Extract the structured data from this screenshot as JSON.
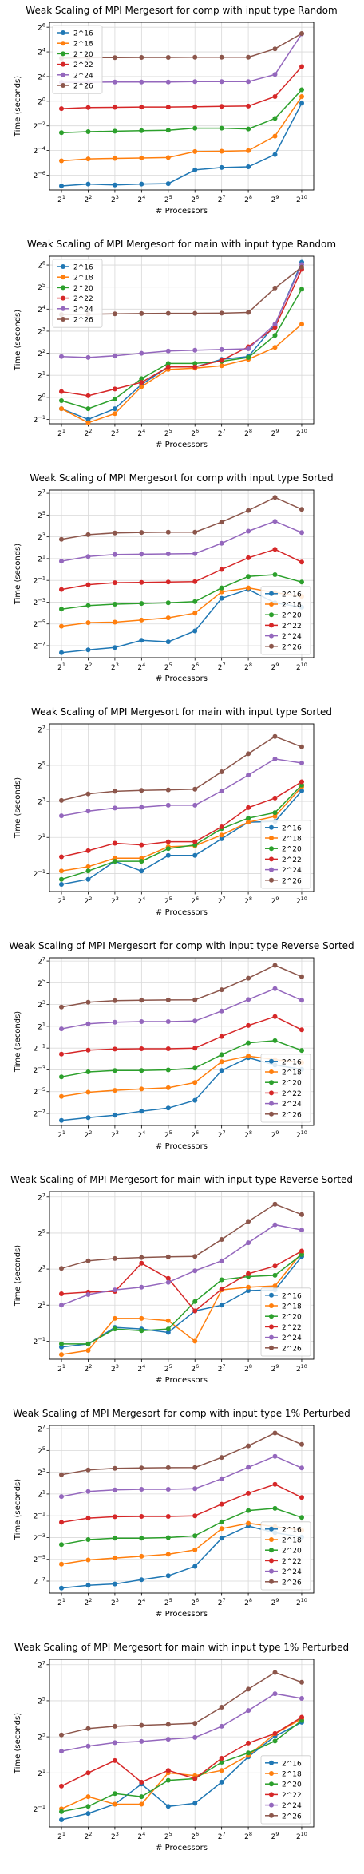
{
  "colors": {
    "2^16": "#1f77b4",
    "2^18": "#ff7f0e",
    "2^20": "#2ca02c",
    "2^22": "#d62728",
    "2^24": "#9467bd",
    "2^26": "#8c564b"
  },
  "chart_data": [
    {
      "type": "line",
      "title": "Weak Scaling of MPI Mergesort for comp with input type Random",
      "xlabel": "# Processors",
      "ylabel": "Time (seconds)",
      "x_scale": "log2",
      "y_scale": "log2",
      "x": [
        2,
        4,
        8,
        16,
        32,
        64,
        128,
        256,
        512,
        1024
      ],
      "x_tick_labels": [
        "2^1",
        "2^2",
        "2^3",
        "2^4",
        "2^5",
        "2^6",
        "2^7",
        "2^8",
        "2^9",
        "2^10"
      ],
      "y_ticks": [
        -6,
        -4,
        -2,
        0,
        2,
        4,
        6
      ],
      "ylim": [
        -7.2,
        6.4
      ],
      "legend_position": "upper-left",
      "grid": true,
      "series": [
        {
          "name": "2^16",
          "values": [
            0.0085,
            0.0095,
            0.009,
            0.0095,
            0.0097,
            0.021,
            0.024,
            0.025,
            0.05,
            0.9
          ]
        },
        {
          "name": "2^18",
          "values": [
            0.035,
            0.039,
            0.04,
            0.041,
            0.042,
            0.059,
            0.06,
            0.062,
            0.14,
            1.3
          ]
        },
        {
          "name": "2^20",
          "values": [
            0.17,
            0.18,
            0.185,
            0.19,
            0.195,
            0.22,
            0.22,
            0.21,
            0.38,
            1.9
          ]
        },
        {
          "name": "2^22",
          "values": [
            0.66,
            0.7,
            0.71,
            0.72,
            0.72,
            0.73,
            0.75,
            0.76,
            1.3,
            7.0
          ]
        },
        {
          "name": "2^24",
          "values": [
            2.9,
            2.9,
            2.95,
            2.95,
            2.95,
            3.0,
            3.0,
            3.0,
            4.5,
            44
          ]
        },
        {
          "name": "2^26",
          "values": [
            11.2,
            11.5,
            11.6,
            11.7,
            11.7,
            11.8,
            11.8,
            11.9,
            19,
            45
          ]
        }
      ]
    },
    {
      "type": "line",
      "title": "Weak Scaling of MPI Mergesort for main with input type Random",
      "xlabel": "# Processors",
      "ylabel": "Time (seconds)",
      "x_scale": "log2",
      "y_scale": "log2",
      "x": [
        2,
        4,
        8,
        16,
        32,
        64,
        128,
        256,
        512,
        1024
      ],
      "x_tick_labels": [
        "2^1",
        "2^2",
        "2^3",
        "2^4",
        "2^5",
        "2^6",
        "2^7",
        "2^8",
        "2^9",
        "2^10"
      ],
      "y_ticks": [
        -1,
        0,
        1,
        2,
        3,
        4,
        5,
        6
      ],
      "ylim": [
        -1.2,
        6.4
      ],
      "legend_position": "upper-left",
      "grid": true,
      "series": [
        {
          "name": "2^16",
          "values": [
            0.7,
            0.5,
            0.7,
            1.5,
            2.6,
            2.6,
            3.3,
            3.6,
            9.8,
            70
          ]
        },
        {
          "name": "2^18",
          "values": [
            0.7,
            0.45,
            0.6,
            1.4,
            2.4,
            2.5,
            2.7,
            3.3,
            4.8,
            10
          ]
        },
        {
          "name": "2^20",
          "values": [
            0.9,
            0.7,
            0.95,
            1.8,
            2.9,
            2.9,
            3.1,
            3.5,
            7.0,
            30
          ]
        },
        {
          "name": "2^22",
          "values": [
            1.2,
            1.05,
            1.3,
            1.6,
            2.6,
            2.6,
            3.2,
            4.9,
            9.0,
            56
          ]
        },
        {
          "name": "2^24",
          "values": [
            3.6,
            3.5,
            3.7,
            4.0,
            4.3,
            4.4,
            4.5,
            4.6,
            10,
            65
          ]
        },
        {
          "name": "2^26",
          "values": [
            13.5,
            13.6,
            13.8,
            13.9,
            14,
            14,
            14.1,
            14.4,
            31,
            60
          ]
        }
      ]
    },
    {
      "type": "line",
      "title": "Weak Scaling of MPI Mergesort for comp with input type Sorted",
      "xlabel": "# Processors",
      "ylabel": "Time (seconds)",
      "x_scale": "log2",
      "y_scale": "log2",
      "x": [
        2,
        4,
        8,
        16,
        32,
        64,
        128,
        256,
        512,
        1024
      ],
      "x_tick_labels": [
        "2^1",
        "2^2",
        "2^3",
        "2^4",
        "2^5",
        "2^6",
        "2^7",
        "2^8",
        "2^9",
        "2^10"
      ],
      "y_ticks": [
        -7,
        -5,
        -3,
        -1,
        1,
        3,
        5,
        7
      ],
      "ylim": [
        -8.1,
        7.3
      ],
      "legend_position": "lower-right",
      "grid": true,
      "series": [
        {
          "name": "2^16",
          "values": [
            0.005,
            0.006,
            0.007,
            0.011,
            0.01,
            0.02,
            0.16,
            0.28,
            0.12,
            0.09
          ]
        },
        {
          "name": "2^18",
          "values": [
            0.027,
            0.034,
            0.035,
            0.04,
            0.046,
            0.062,
            0.24,
            0.31,
            0.23,
            0.18
          ]
        },
        {
          "name": "2^20",
          "values": [
            0.08,
            0.1,
            0.11,
            0.115,
            0.12,
            0.13,
            0.31,
            0.64,
            0.72,
            0.45
          ]
        },
        {
          "name": "2^22",
          "values": [
            0.28,
            0.38,
            0.43,
            0.44,
            0.45,
            0.46,
            1.0,
            2.1,
            3.6,
            1.6
          ]
        },
        {
          "name": "2^24",
          "values": [
            1.7,
            2.3,
            2.6,
            2.65,
            2.7,
            2.75,
            5.3,
            11.5,
            21.5,
            10.5
          ]
        },
        {
          "name": "2^26",
          "values": [
            6.8,
            9.2,
            10.3,
            10.6,
            10.8,
            10.8,
            20.5,
            43,
            98,
            46
          ]
        }
      ]
    },
    {
      "type": "line",
      "title": "Weak Scaling of MPI Mergesort for main with input type Sorted",
      "xlabel": "# Processors",
      "ylabel": "Time (seconds)",
      "x_scale": "log2",
      "y_scale": "log2",
      "x": [
        2,
        4,
        8,
        16,
        32,
        64,
        128,
        256,
        512,
        1024
      ],
      "x_tick_labels": [
        "2^1",
        "2^2",
        "2^3",
        "2^4",
        "2^5",
        "2^6",
        "2^7",
        "2^8",
        "2^9",
        "2^10"
      ],
      "y_ticks": [
        -1,
        1,
        3,
        5,
        7
      ],
      "ylim": [
        -2.0,
        7.3
      ],
      "legend_position": "lower-right",
      "grid": true,
      "series": [
        {
          "name": "2^16",
          "values": [
            0.33,
            0.4,
            0.8,
            0.55,
            1.0,
            1.0,
            1.9,
            3.6,
            3.7,
            12
          ]
        },
        {
          "name": "2^18",
          "values": [
            0.55,
            0.65,
            0.9,
            0.9,
            1.4,
            1.45,
            2.2,
            3.6,
            4.5,
            14
          ]
        },
        {
          "name": "2^20",
          "values": [
            0.4,
            0.55,
            0.8,
            0.8,
            1.3,
            1.5,
            2.8,
            4.2,
            5.2,
            15
          ]
        },
        {
          "name": "2^22",
          "values": [
            0.95,
            1.2,
            1.6,
            1.5,
            1.7,
            1.7,
            3.0,
            6.3,
            9.1,
            17
          ]
        },
        {
          "name": "2^24",
          "values": [
            4.6,
            5.5,
            6.2,
            6.4,
            6.9,
            6.9,
            12,
            22,
            41,
            35
          ]
        },
        {
          "name": "2^26",
          "values": [
            8.3,
            10.7,
            11.8,
            12.2,
            12.5,
            12.8,
            25,
            50,
            97,
            65
          ]
        }
      ]
    },
    {
      "type": "line",
      "title": "Weak Scaling of MPI Mergesort for comp with input type Reverse Sorted",
      "xlabel": "# Processors",
      "ylabel": "Time (seconds)",
      "x_scale": "log2",
      "y_scale": "log2",
      "x": [
        2,
        4,
        8,
        16,
        32,
        64,
        128,
        256,
        512,
        1024
      ],
      "x_tick_labels": [
        "2^1",
        "2^2",
        "2^3",
        "2^4",
        "2^5",
        "2^6",
        "2^7",
        "2^8",
        "2^9",
        "2^10"
      ],
      "y_ticks": [
        -7,
        -5,
        -3,
        -1,
        1,
        3,
        5,
        7
      ],
      "ylim": [
        -8.1,
        7.3
      ],
      "legend_position": "lower-right",
      "grid": true,
      "series": [
        {
          "name": "2^16",
          "values": [
            0.005,
            0.006,
            0.007,
            0.009,
            0.011,
            0.018,
            0.12,
            0.27,
            0.17,
            0.13
          ]
        },
        {
          "name": "2^18",
          "values": [
            0.023,
            0.03,
            0.034,
            0.037,
            0.04,
            0.056,
            0.21,
            0.3,
            0.24,
            0.2
          ]
        },
        {
          "name": "2^20",
          "values": [
            0.08,
            0.11,
            0.12,
            0.12,
            0.125,
            0.14,
            0.33,
            0.7,
            0.8,
            0.43
          ]
        },
        {
          "name": "2^22",
          "values": [
            0.34,
            0.44,
            0.47,
            0.48,
            0.48,
            0.5,
            1.05,
            2.1,
            3.7,
            1.6
          ]
        },
        {
          "name": "2^24",
          "values": [
            1.7,
            2.35,
            2.6,
            2.7,
            2.7,
            2.8,
            5.3,
            11,
            22,
            10.5
          ]
        },
        {
          "name": "2^26",
          "values": [
            6.8,
            9.3,
            10.3,
            10.5,
            10.7,
            10.8,
            20.5,
            43,
            97,
            47
          ]
        }
      ]
    },
    {
      "type": "line",
      "title": "Weak Scaling of MPI Mergesort for main with input type Reverse Sorted",
      "xlabel": "# Processors",
      "ylabel": "Time (seconds)",
      "x_scale": "log2",
      "y_scale": "log2",
      "x": [
        2,
        4,
        8,
        16,
        32,
        64,
        128,
        256,
        512,
        1024
      ],
      "x_tick_labels": [
        "2^1",
        "2^2",
        "2^3",
        "2^4",
        "2^5",
        "2^6",
        "2^7",
        "2^8",
        "2^9",
        "2^10"
      ],
      "y_ticks": [
        -1,
        1,
        3,
        5,
        7
      ],
      "ylim": [
        -2.0,
        7.3
      ],
      "legend_position": "lower-right",
      "grid": true,
      "series": [
        {
          "name": "2^16",
          "values": [
            0.4,
            0.45,
            0.85,
            0.8,
            0.7,
            1.6,
            2.0,
            3.5,
            3.6,
            13
          ]
        },
        {
          "name": "2^18",
          "values": [
            0.3,
            0.35,
            1.2,
            1.2,
            1.1,
            0.5,
            3.6,
            4.0,
            4.2,
            15
          ]
        },
        {
          "name": "2^20",
          "values": [
            0.45,
            0.45,
            0.8,
            0.75,
            0.8,
            2.3,
            5.3,
            6.0,
            6.3,
            14
          ]
        },
        {
          "name": "2^22",
          "values": [
            3.1,
            3.3,
            3.4,
            10,
            5.6,
            1.6,
            3.7,
            6.7,
            9.0,
            16
          ]
        },
        {
          "name": "2^24",
          "values": [
            2.0,
            3.0,
            3.6,
            4.0,
            4.8,
            7.5,
            11,
            22,
            44,
            36
          ]
        },
        {
          "name": "2^26",
          "values": [
            8.2,
            11.0,
            12.0,
            12.5,
            12.8,
            13,
            25,
            50,
            97,
            65
          ]
        }
      ]
    },
    {
      "type": "line",
      "title": "Weak Scaling of MPI Mergesort for comp with input type 1% Perturbed",
      "xlabel": "# Processors",
      "ylabel": "Time (seconds)",
      "x_scale": "log2",
      "y_scale": "log2",
      "x": [
        2,
        4,
        8,
        16,
        32,
        64,
        128,
        256,
        512,
        1024
      ],
      "x_tick_labels": [
        "2^1",
        "2^2",
        "2^3",
        "2^4",
        "2^5",
        "2^6",
        "2^7",
        "2^8",
        "2^9",
        "2^10"
      ],
      "y_ticks": [
        -7,
        -5,
        -3,
        -1,
        1,
        3,
        5,
        7
      ],
      "ylim": [
        -8.1,
        7.3
      ],
      "legend_position": "lower-right",
      "grid": true,
      "series": [
        {
          "name": "2^16",
          "values": [
            0.005,
            0.006,
            0.0065,
            0.0085,
            0.011,
            0.02,
            0.12,
            0.26,
            0.17,
            0.13
          ]
        },
        {
          "name": "2^18",
          "values": [
            0.023,
            0.03,
            0.034,
            0.038,
            0.043,
            0.057,
            0.22,
            0.31,
            0.25,
            0.2
          ]
        },
        {
          "name": "2^20",
          "values": [
            0.08,
            0.11,
            0.12,
            0.12,
            0.125,
            0.14,
            0.34,
            0.7,
            0.8,
            0.45
          ]
        },
        {
          "name": "2^22",
          "values": [
            0.33,
            0.43,
            0.47,
            0.48,
            0.48,
            0.5,
            1.05,
            2.1,
            3.7,
            1.6
          ]
        },
        {
          "name": "2^24",
          "values": [
            1.7,
            2.35,
            2.6,
            2.7,
            2.7,
            2.8,
            5.3,
            11,
            22,
            10.5
          ]
        },
        {
          "name": "2^26",
          "values": [
            6.8,
            9.3,
            10.3,
            10.5,
            10.7,
            10.8,
            20.5,
            43,
            97,
            47
          ]
        }
      ]
    },
    {
      "type": "line",
      "title": "Weak Scaling of MPI Mergesort for main with input type 1% Perturbed",
      "xlabel": "# Processors",
      "ylabel": "Time (seconds)",
      "x_scale": "log2",
      "y_scale": "log2",
      "x": [
        2,
        4,
        8,
        16,
        32,
        64,
        128,
        256,
        512,
        1024
      ],
      "x_tick_labels": [
        "2^1",
        "2^2",
        "2^3",
        "2^4",
        "2^5",
        "2^6",
        "2^7",
        "2^8",
        "2^9",
        "2^10"
      ],
      "y_ticks": [
        -1,
        1,
        3,
        5,
        7
      ],
      "ylim": [
        -2.0,
        7.3
      ],
      "legend_position": "lower-right",
      "grid": true,
      "series": [
        {
          "name": "2^16",
          "values": [
            0.33,
            0.42,
            0.6,
            1.3,
            0.55,
            0.62,
            1.4,
            3.7,
            8.2,
            14
          ]
        },
        {
          "name": "2^18",
          "values": [
            0.5,
            0.8,
            0.6,
            0.6,
            2.0,
            1.8,
            2.2,
            3.9,
            9.0,
            16
          ]
        },
        {
          "name": "2^20",
          "values": [
            0.45,
            0.55,
            0.9,
            0.8,
            1.5,
            1.6,
            3.0,
            4.3,
            6.8,
            15
          ]
        },
        {
          "name": "2^22",
          "values": [
            1.2,
            2.0,
            3.2,
            1.4,
            2.2,
            1.6,
            3.5,
            6.3,
            9.1,
            17
          ]
        },
        {
          "name": "2^24",
          "values": [
            4.6,
            5.6,
            6.4,
            6.7,
            7.3,
            7.8,
            12,
            22,
            42,
            35
          ]
        },
        {
          "name": "2^26",
          "values": [
            8.6,
            11.0,
            12.0,
            12.5,
            12.9,
            13.5,
            25,
            50,
            95,
            65
          ]
        }
      ]
    }
  ]
}
